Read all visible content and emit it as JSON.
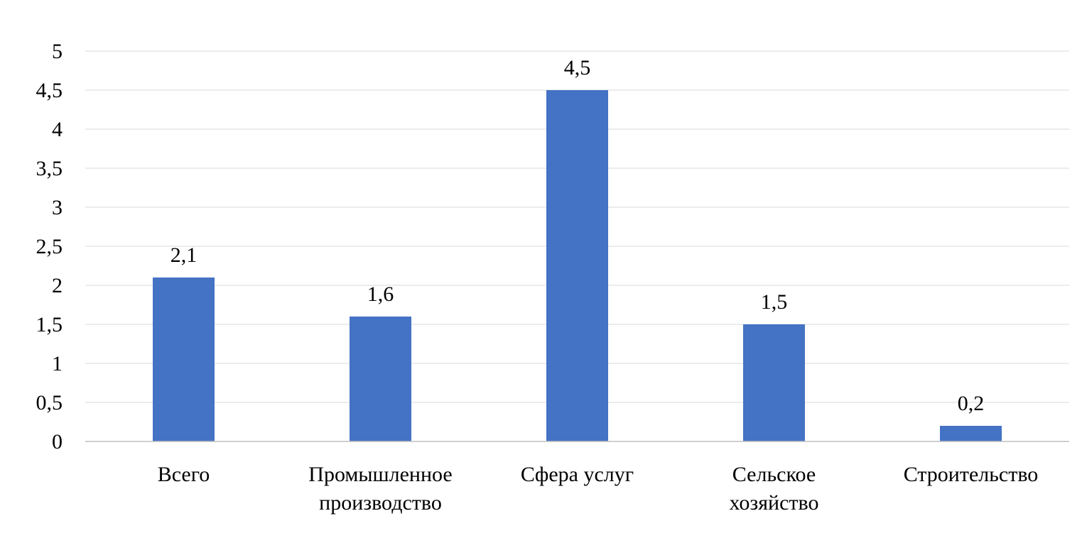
{
  "chart_data": {
    "type": "bar",
    "categories": [
      [
        "Всего"
      ],
      [
        "Промышленное",
        "производство"
      ],
      [
        "Сфера услуг"
      ],
      [
        "Сельское",
        "хозяйство"
      ],
      [
        "Строительство"
      ]
    ],
    "values": [
      2.1,
      1.6,
      4.5,
      1.5,
      0.2
    ],
    "data_labels": [
      "2,1",
      "1,6",
      "4,5",
      "1,5",
      "0,2"
    ],
    "ylim": [
      0,
      5
    ],
    "yticks": [
      0,
      0.5,
      1,
      1.5,
      2,
      2.5,
      3,
      3.5,
      4,
      4.5,
      5
    ],
    "ytick_labels": [
      "0",
      "0,5",
      "1",
      "1,5",
      "2",
      "2,5",
      "3",
      "3,5",
      "4",
      "4,5",
      "5"
    ],
    "title": "",
    "xlabel": "",
    "ylabel": "",
    "grid": true,
    "legend": "none",
    "bar_color": "#4472c4"
  }
}
